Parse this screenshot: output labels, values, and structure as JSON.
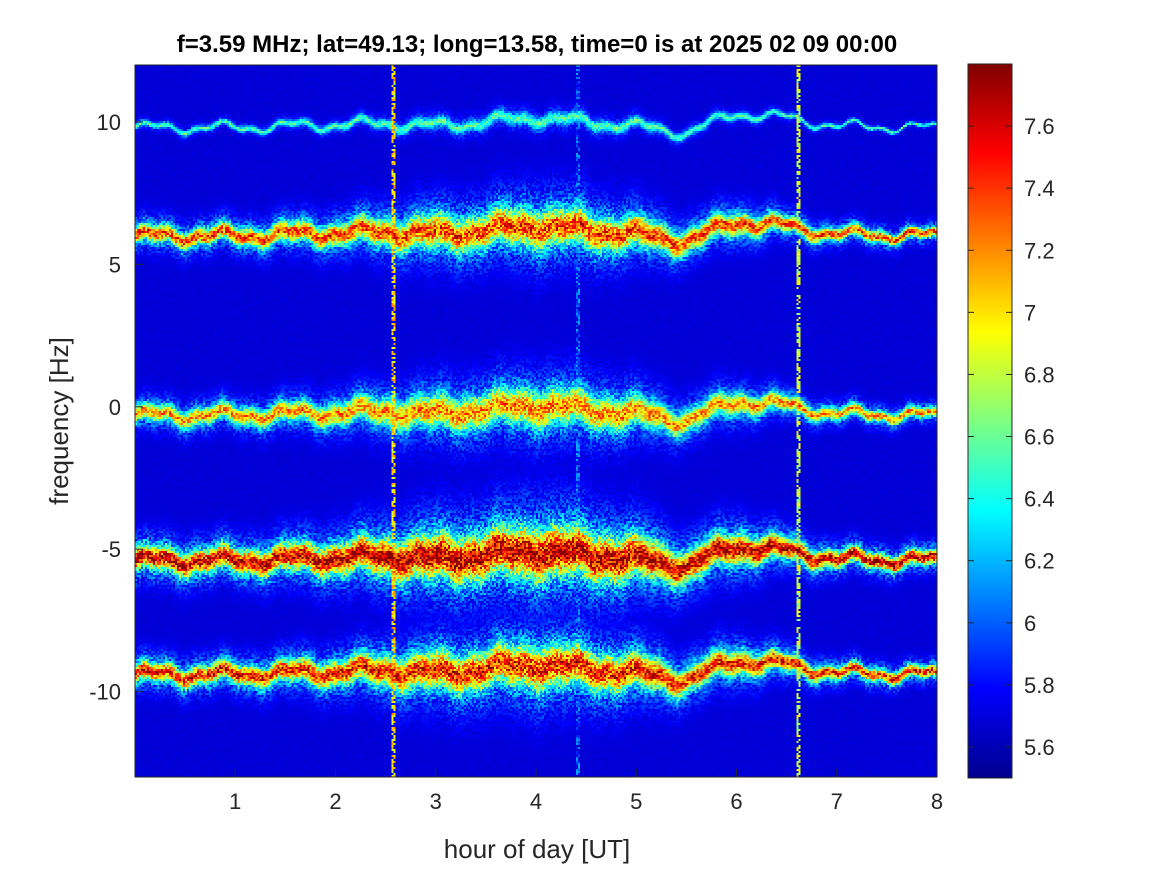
{
  "chart_data": {
    "type": "heatmap",
    "title": "f=3.59 MHz;  lat=49.13; long=13.58, time=0 is at 2025 02 09 00:00",
    "xlabel": "hour of day [UT]",
    "ylabel": "frequency [Hz]",
    "xlim": [
      0,
      8
    ],
    "ylim": [
      -13,
      12
    ],
    "x_ticks": [
      1,
      2,
      3,
      4,
      5,
      6,
      7,
      8
    ],
    "y_ticks": [
      -10,
      -5,
      0,
      5,
      10
    ],
    "colorbar": {
      "colormap": "jet",
      "range": [
        5.5,
        7.8
      ],
      "ticks": [
        5.6,
        5.8,
        6.0,
        6.2,
        6.4,
        6.6,
        6.8,
        7.0,
        7.2,
        7.4,
        7.6
      ],
      "tick_labels": [
        "5.6",
        "5.8",
        "6",
        "6.2",
        "6.4",
        "6.6",
        "6.8",
        "7",
        "7.2",
        "7.4",
        "7.6"
      ]
    },
    "background_level": 5.55,
    "traces": [
      {
        "center_hz": 9.8,
        "peak": 6.5,
        "halfwidth_hz": 0.15
      },
      {
        "center_hz": 6.0,
        "peak": 7.4,
        "halfwidth_hz": 0.45
      },
      {
        "center_hz": -0.3,
        "peak": 7.2,
        "halfwidth_hz": 0.45
      },
      {
        "center_hz": -5.4,
        "peak": 7.7,
        "halfwidth_hz": 0.6
      },
      {
        "center_hz": -9.4,
        "peak": 7.5,
        "halfwidth_hz": 0.5
      }
    ],
    "trace_profile": {
      "x_hour": [
        0,
        1,
        2,
        2.5,
        3,
        3.5,
        4,
        4.5,
        5,
        5.5,
        6,
        6.5,
        7,
        8
      ],
      "offset_hz": [
        0,
        0,
        0.1,
        0.15,
        0.05,
        0.2,
        0.35,
        0.2,
        0.05,
        -0.2,
        0.5,
        0.35,
        0.05,
        0
      ],
      "spread": [
        1,
        1,
        1.3,
        1.6,
        2.0,
        2.0,
        2.3,
        2.1,
        1.8,
        1.3,
        1.3,
        0.9,
        0.7,
        0.6
      ]
    },
    "vertical_streaks": [
      {
        "x_hour": 2.58,
        "level": 7.2
      },
      {
        "x_hour": 6.62,
        "level": 7.0
      },
      {
        "x_hour": 4.42,
        "level": 6.1
      }
    ]
  }
}
